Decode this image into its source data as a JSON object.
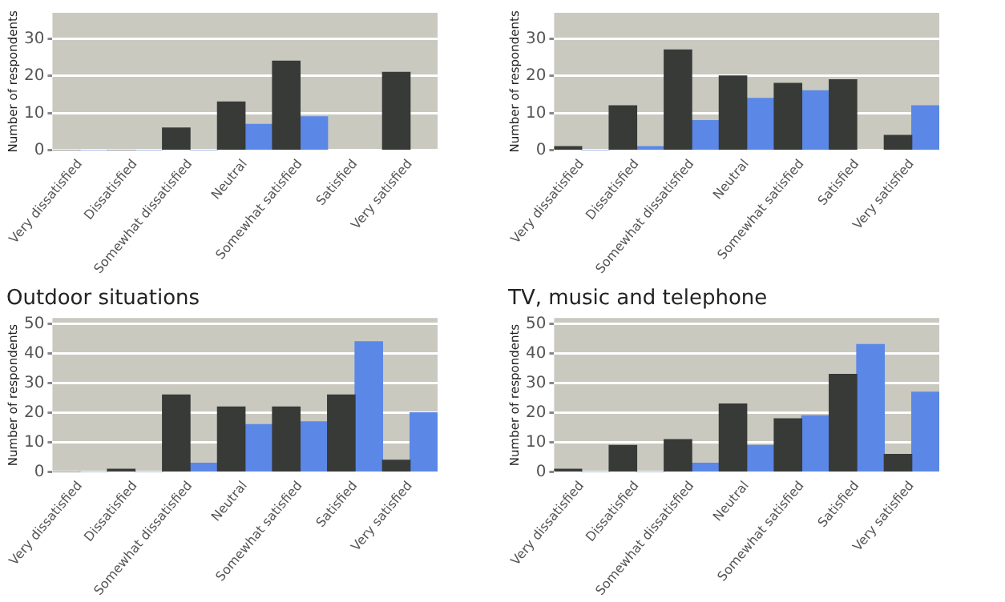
{
  "chart_data": [
    {
      "type": "bar",
      "ylabel": "Number of respondents",
      "categories": [
        "Very dissatisfied",
        "Dissatisfied",
        "Somewhat dissatisfied",
        "Neutral",
        "Somewhat satisfied",
        "Satisfied",
        "Very satisfied"
      ],
      "series": [
        {
          "color": "#373a36",
          "values": [
            0,
            0,
            6,
            13,
            24,
            null,
            21
          ]
        },
        {
          "color": "#5b87e6",
          "values": [
            0,
            0,
            0,
            7,
            9,
            null,
            null
          ]
        }
      ],
      "ylim": [
        0,
        37
      ],
      "yticks": [
        0,
        10,
        20,
        30
      ],
      "grid": "y"
    },
    {
      "type": "bar",
      "ylabel": "Number of respondents",
      "categories": [
        "Very dissatisfied",
        "Dissatisfied",
        "Somewhat dissatisfied",
        "Neutral",
        "Somewhat satisfied",
        "Satisfied",
        "Very satisfied"
      ],
      "series": [
        {
          "color": "#373a36",
          "values": [
            1,
            12,
            27,
            20,
            18,
            19,
            4
          ]
        },
        {
          "color": "#5b87e6",
          "values": [
            0,
            1,
            8,
            14,
            16,
            null,
            12
          ]
        }
      ],
      "ylim": [
        0,
        37
      ],
      "yticks": [
        0,
        10,
        20,
        30
      ],
      "grid": "y"
    },
    {
      "type": "bar",
      "title": "Outdoor situations",
      "ylabel": "Number of respondents",
      "categories": [
        "Very dissatisfied",
        "Dissatisfied",
        "Somewhat dissatisfied",
        "Neutral",
        "Somewhat satisfied",
        "Satisfied",
        "Very satisfied"
      ],
      "series": [
        {
          "color": "#373a36",
          "values": [
            0,
            1,
            26,
            22,
            22,
            26,
            4
          ]
        },
        {
          "color": "#5b87e6",
          "values": [
            0,
            0,
            3,
            16,
            17,
            44,
            20
          ]
        }
      ],
      "ylim": [
        0,
        52
      ],
      "yticks": [
        0,
        10,
        20,
        30,
        40,
        50
      ],
      "grid": "y"
    },
    {
      "type": "bar",
      "title": "TV, music and telephone",
      "ylabel": "Number of respondents",
      "categories": [
        "Very dissatisfied",
        "Dissatisfied",
        "Somewhat dissatisfied",
        "Neutral",
        "Somewhat satisfied",
        "Satisfied",
        "Very satisfied"
      ],
      "series": [
        {
          "color": "#373a36",
          "values": [
            1,
            9,
            11,
            23,
            18,
            33,
            6
          ]
        },
        {
          "color": "#5b87e6",
          "values": [
            0,
            0,
            3,
            9,
            19,
            43,
            27
          ]
        }
      ],
      "ylim": [
        0,
        52
      ],
      "yticks": [
        0,
        10,
        20,
        30,
        40,
        50
      ],
      "grid": "y"
    }
  ]
}
